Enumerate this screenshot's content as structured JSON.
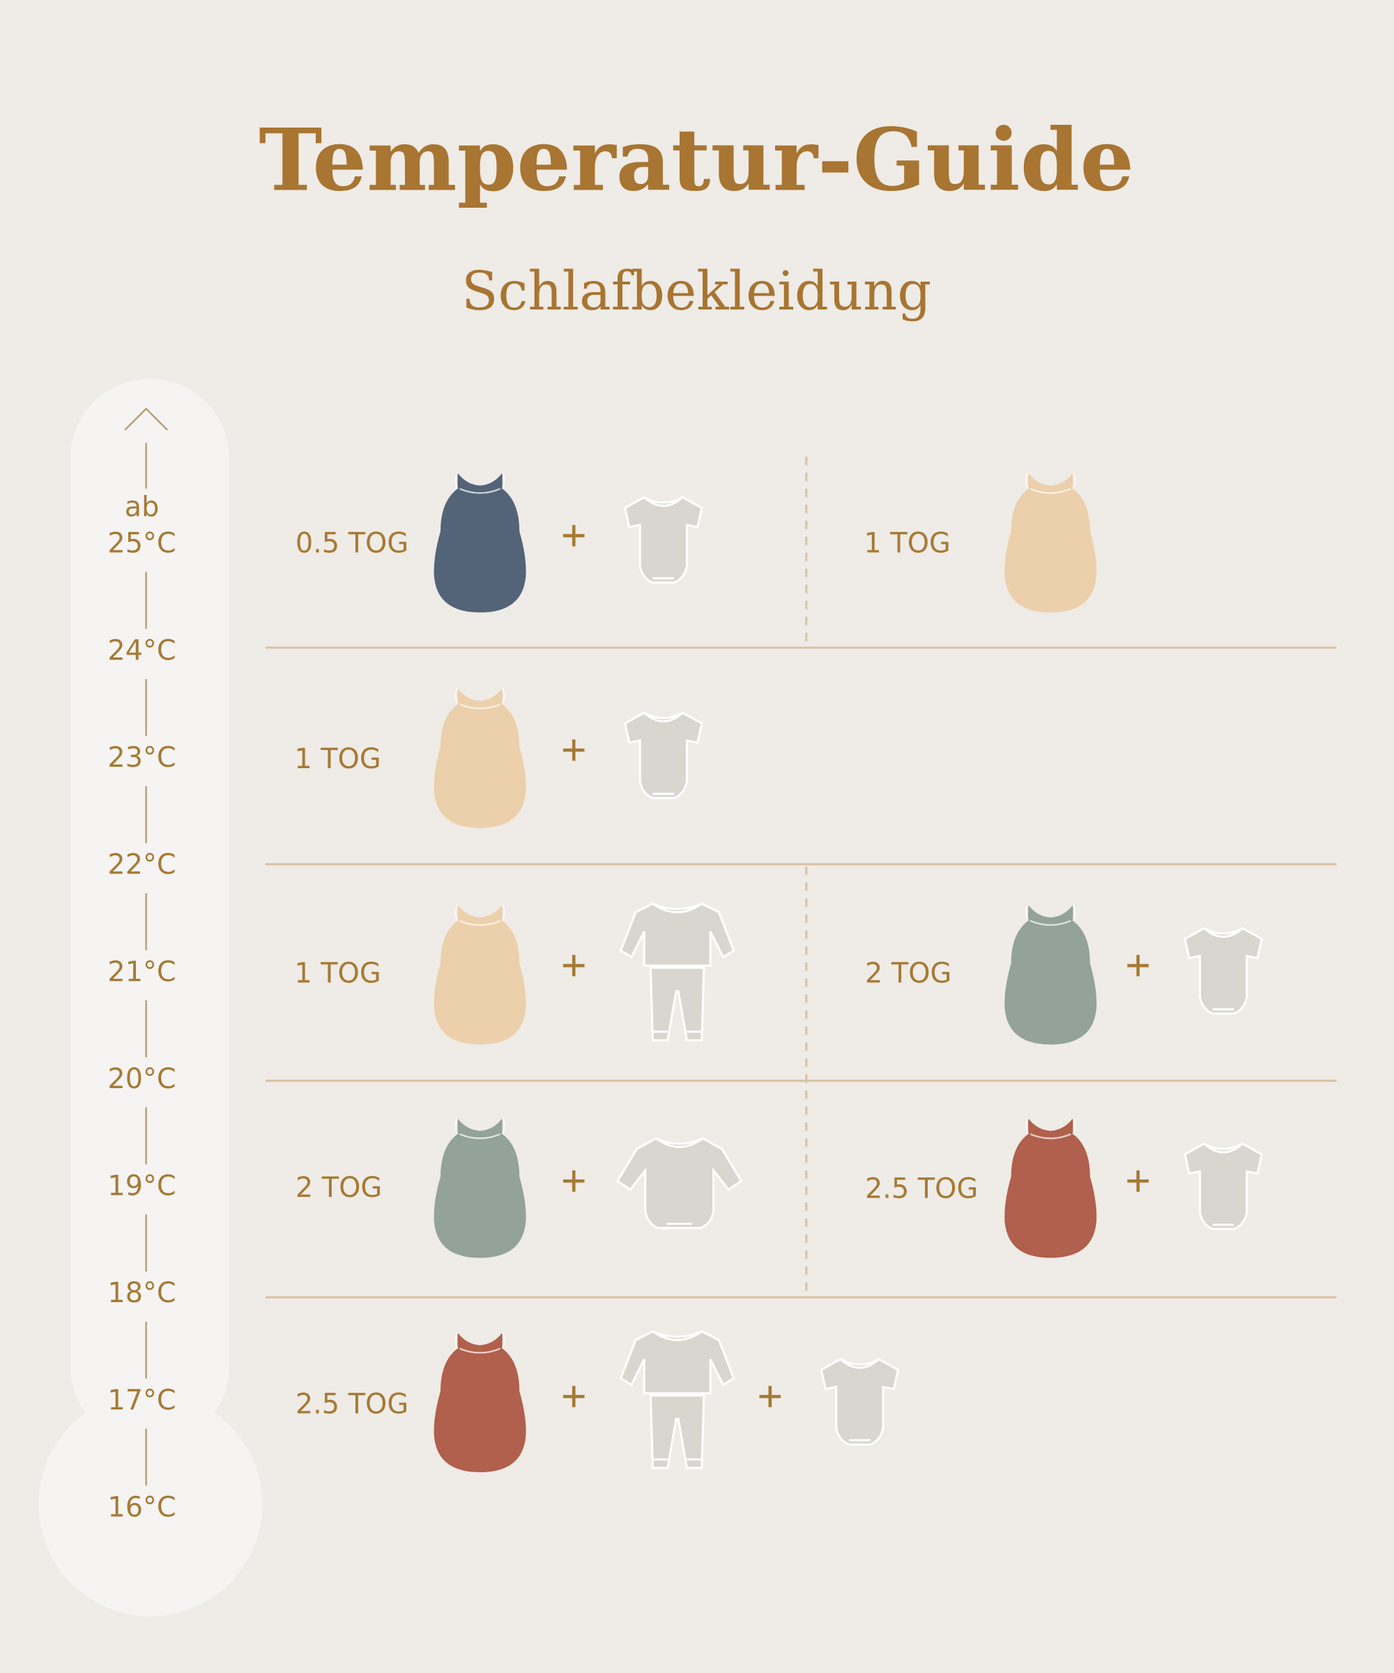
{
  "header": {
    "title": "Temperatur-Guide",
    "subtitle": "Schlafbekleidung"
  },
  "scale": {
    "prefix": "ab",
    "labels": [
      "25°C",
      "24°C",
      "23°C",
      "22°C",
      "21°C",
      "20°C",
      "19°C",
      "18°C",
      "17°C",
      "16°C"
    ]
  },
  "rows": [
    [
      "0.5 TOG",
      "1 TOG"
    ],
    [
      "1 TOG"
    ],
    [
      "1 TOG",
      "2 TOG"
    ],
    [
      "2 TOG",
      "2.5 TOG"
    ],
    [
      "2.5 TOG"
    ]
  ]
}
